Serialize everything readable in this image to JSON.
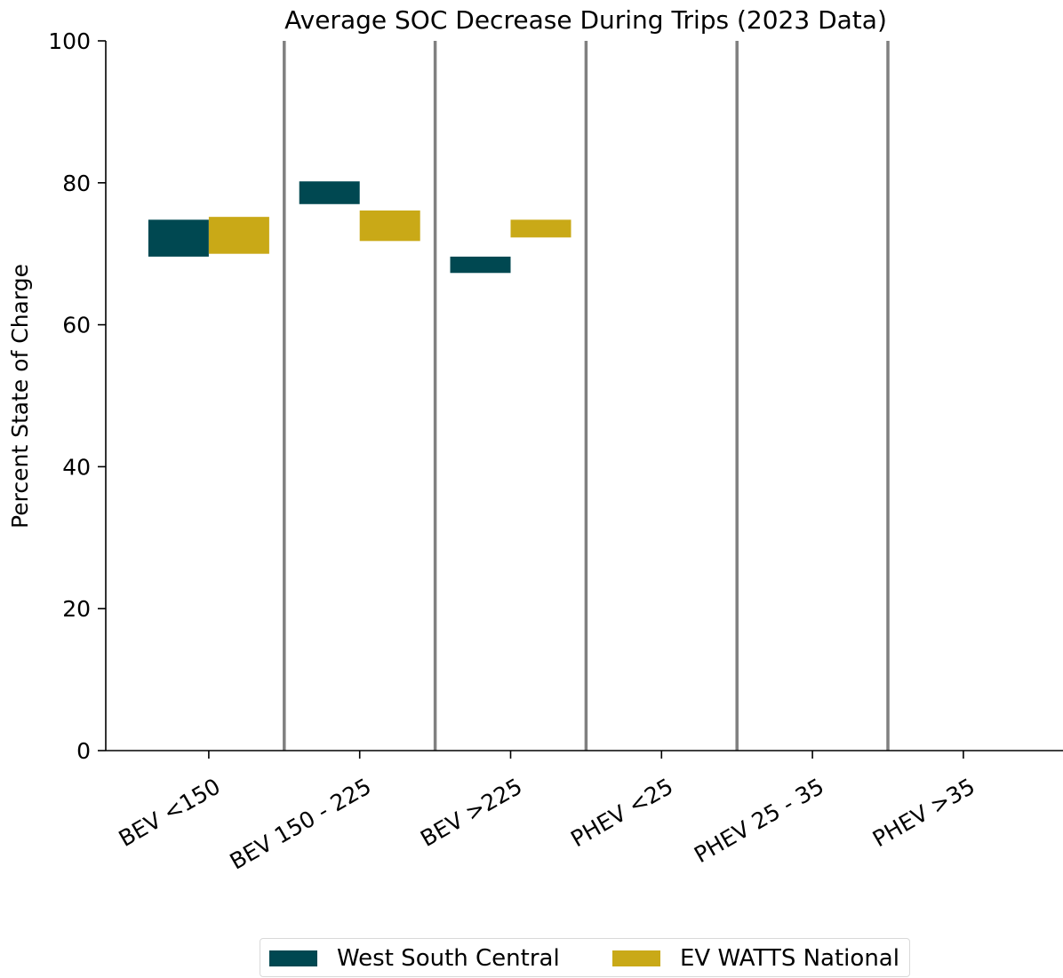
{
  "chart_data": {
    "type": "bar",
    "title": "Average SOC Decrease During Trips (2023 Data)",
    "xlabel": "",
    "ylabel": "Percent State of Charge",
    "ylim": [
      0,
      100
    ],
    "yticks": [
      "0",
      "20",
      "40",
      "60",
      "80",
      "100"
    ],
    "categories": [
      "BEV <150",
      "BEV 150 - 225",
      "BEV >225",
      "PHEV <25",
      "PHEV 25 - 35",
      "PHEV >35"
    ],
    "series": [
      {
        "name": "West South Central",
        "color": "#004851",
        "ranges": [
          [
            69.6,
            74.8
          ],
          [
            77.0,
            80.2
          ],
          [
            67.3,
            69.6
          ],
          null,
          null,
          null
        ]
      },
      {
        "name": "EV WATTS National",
        "color": "#c9a917",
        "ranges": [
          [
            70.0,
            75.2
          ],
          [
            71.8,
            76.1
          ],
          [
            72.3,
            74.8
          ],
          null,
          null,
          null
        ]
      }
    ],
    "grid": false,
    "category_separators": true,
    "legend_position": "bottom-center"
  }
}
